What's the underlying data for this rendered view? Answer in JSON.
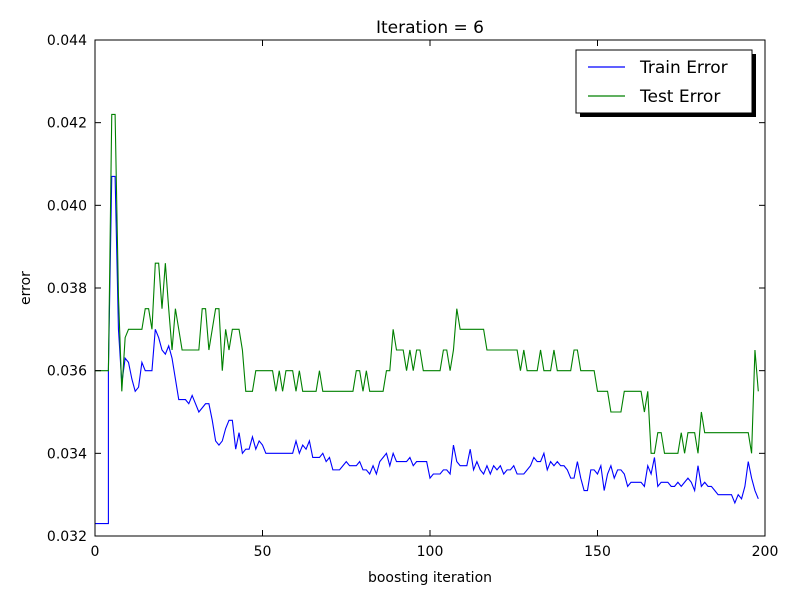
{
  "chart_data": {
    "type": "line",
    "title": "Iteration = 6",
    "xlabel": "boosting iteration",
    "ylabel": "error",
    "xlim": [
      0,
      200
    ],
    "ylim": [
      0.032,
      0.044
    ],
    "x_ticks": [
      "0",
      "50",
      "100",
      "150",
      "200"
    ],
    "y_ticks": [
      "0.032",
      "0.034",
      "0.036",
      "0.038",
      "0.040",
      "0.042",
      "0.044"
    ],
    "grid": false,
    "legend_position": "top-right",
    "series": [
      {
        "name": "Train Error",
        "color": "#0000ff",
        "points": [
          [
            0,
            0.0323
          ],
          [
            4,
            0.0323
          ],
          [
            4,
            0.036
          ],
          [
            5,
            0.0407
          ],
          [
            6,
            0.0407
          ],
          [
            7,
            0.037
          ],
          [
            8,
            0.0357
          ],
          [
            9,
            0.0363
          ],
          [
            10,
            0.0362
          ],
          [
            11,
            0.0358
          ],
          [
            12,
            0.0355
          ],
          [
            13,
            0.0356
          ],
          [
            14,
            0.0362
          ],
          [
            15,
            0.036
          ],
          [
            17,
            0.036
          ],
          [
            18,
            0.037
          ],
          [
            19,
            0.0368
          ],
          [
            20,
            0.0365
          ],
          [
            21,
            0.0364
          ],
          [
            22,
            0.0366
          ],
          [
            23,
            0.0363
          ],
          [
            24,
            0.0358
          ],
          [
            25,
            0.0353
          ],
          [
            27,
            0.0353
          ],
          [
            28,
            0.0352
          ],
          [
            29,
            0.0354
          ],
          [
            30,
            0.0352
          ],
          [
            31,
            0.035
          ],
          [
            32,
            0.0351
          ],
          [
            33,
            0.0352
          ],
          [
            34,
            0.0352
          ],
          [
            35,
            0.0348
          ],
          [
            36,
            0.0343
          ],
          [
            37,
            0.0342
          ],
          [
            38,
            0.0343
          ],
          [
            39,
            0.0346
          ],
          [
            40,
            0.0348
          ],
          [
            41,
            0.0348
          ],
          [
            42,
            0.0341
          ],
          [
            43,
            0.0345
          ],
          [
            44,
            0.034
          ],
          [
            45,
            0.0341
          ],
          [
            46,
            0.0341
          ],
          [
            47,
            0.0344
          ],
          [
            48,
            0.0341
          ],
          [
            49,
            0.0343
          ],
          [
            50,
            0.0342
          ],
          [
            51,
            0.034
          ],
          [
            59,
            0.034
          ],
          [
            60,
            0.0343
          ],
          [
            61,
            0.034
          ],
          [
            62,
            0.0342
          ],
          [
            63,
            0.0341
          ],
          [
            64,
            0.0343
          ],
          [
            65,
            0.0339
          ],
          [
            67,
            0.0339
          ],
          [
            68,
            0.034
          ],
          [
            69,
            0.0338
          ],
          [
            70,
            0.0339
          ],
          [
            71,
            0.0336
          ],
          [
            73,
            0.0336
          ],
          [
            74,
            0.0337
          ],
          [
            75,
            0.0338
          ],
          [
            76,
            0.0337
          ],
          [
            78,
            0.0337
          ],
          [
            79,
            0.0338
          ],
          [
            80,
            0.0336
          ],
          [
            81,
            0.0336
          ],
          [
            82,
            0.0335
          ],
          [
            83,
            0.0337
          ],
          [
            84,
            0.0335
          ],
          [
            85,
            0.0338
          ],
          [
            86,
            0.0339
          ],
          [
            87,
            0.034
          ],
          [
            88,
            0.0337
          ],
          [
            89,
            0.034
          ],
          [
            90,
            0.0338
          ],
          [
            93,
            0.0338
          ],
          [
            94,
            0.0339
          ],
          [
            95,
            0.0337
          ],
          [
            96,
            0.0338
          ],
          [
            97,
            0.0338
          ],
          [
            98,
            0.0338
          ],
          [
            99,
            0.0338
          ],
          [
            100,
            0.0334
          ],
          [
            101,
            0.0335
          ],
          [
            103,
            0.0335
          ],
          [
            104,
            0.0336
          ],
          [
            105,
            0.0336
          ],
          [
            106,
            0.0335
          ],
          [
            107,
            0.0342
          ],
          [
            108,
            0.0338
          ],
          [
            109,
            0.0337
          ],
          [
            111,
            0.0337
          ],
          [
            112,
            0.0341
          ],
          [
            113,
            0.0336
          ],
          [
            114,
            0.0338
          ],
          [
            115,
            0.0336
          ],
          [
            116,
            0.0335
          ],
          [
            117,
            0.0337
          ],
          [
            118,
            0.0335
          ],
          [
            119,
            0.0337
          ],
          [
            120,
            0.0336
          ],
          [
            121,
            0.0337
          ],
          [
            122,
            0.0335
          ],
          [
            123,
            0.0336
          ],
          [
            124,
            0.0336
          ],
          [
            125,
            0.0337
          ],
          [
            126,
            0.0335
          ],
          [
            128,
            0.0335
          ],
          [
            129,
            0.0336
          ],
          [
            130,
            0.0337
          ],
          [
            131,
            0.0339
          ],
          [
            132,
            0.0338
          ],
          [
            133,
            0.0338
          ],
          [
            134,
            0.034
          ],
          [
            135,
            0.0336
          ],
          [
            136,
            0.0338
          ],
          [
            137,
            0.0337
          ],
          [
            138,
            0.0338
          ],
          [
            139,
            0.0337
          ],
          [
            140,
            0.0337
          ],
          [
            141,
            0.0336
          ],
          [
            142,
            0.0334
          ],
          [
            143,
            0.0334
          ],
          [
            144,
            0.0338
          ],
          [
            145,
            0.0334
          ],
          [
            146,
            0.0331
          ],
          [
            147,
            0.0331
          ],
          [
            148,
            0.0336
          ],
          [
            149,
            0.0336
          ],
          [
            150,
            0.0335
          ],
          [
            151,
            0.0337
          ],
          [
            152,
            0.0331
          ],
          [
            153,
            0.0335
          ],
          [
            154,
            0.0337
          ],
          [
            155,
            0.0334
          ],
          [
            156,
            0.0336
          ],
          [
            157,
            0.0336
          ],
          [
            158,
            0.0335
          ],
          [
            159,
            0.0332
          ],
          [
            160,
            0.0333
          ],
          [
            161,
            0.0333
          ],
          [
            162,
            0.0333
          ],
          [
            163,
            0.0333
          ],
          [
            164,
            0.0332
          ],
          [
            165,
            0.0337
          ],
          [
            166,
            0.0335
          ],
          [
            167,
            0.0339
          ],
          [
            168,
            0.0332
          ],
          [
            169,
            0.0333
          ],
          [
            170,
            0.0333
          ],
          [
            171,
            0.0333
          ],
          [
            172,
            0.0332
          ],
          [
            173,
            0.0332
          ],
          [
            174,
            0.0333
          ],
          [
            175,
            0.0332
          ],
          [
            176,
            0.0333
          ],
          [
            177,
            0.0334
          ],
          [
            178,
            0.0333
          ],
          [
            179,
            0.0331
          ],
          [
            180,
            0.0337
          ],
          [
            181,
            0.0332
          ],
          [
            182,
            0.0333
          ],
          [
            183,
            0.0332
          ],
          [
            184,
            0.0332
          ],
          [
            185,
            0.0331
          ],
          [
            186,
            0.033
          ],
          [
            190,
            0.033
          ],
          [
            191,
            0.0328
          ],
          [
            192,
            0.033
          ],
          [
            193,
            0.0329
          ],
          [
            194,
            0.0332
          ],
          [
            195,
            0.0338
          ],
          [
            196,
            0.0334
          ],
          [
            197,
            0.0331
          ],
          [
            198,
            0.0329
          ]
        ]
      },
      {
        "name": "Test Error",
        "color": "#008000",
        "points": [
          [
            0,
            0.036
          ],
          [
            4,
            0.036
          ],
          [
            5,
            0.0422
          ],
          [
            6,
            0.0422
          ],
          [
            7,
            0.0378
          ],
          [
            8,
            0.0355
          ],
          [
            9,
            0.0368
          ],
          [
            10,
            0.037
          ],
          [
            14,
            0.037
          ],
          [
            15,
            0.0375
          ],
          [
            16,
            0.0375
          ],
          [
            17,
            0.037
          ],
          [
            18,
            0.0386
          ],
          [
            19,
            0.0386
          ],
          [
            20,
            0.0375
          ],
          [
            21,
            0.0386
          ],
          [
            22,
            0.0375
          ],
          [
            23,
            0.0365
          ],
          [
            24,
            0.0375
          ],
          [
            25,
            0.037
          ],
          [
            26,
            0.0365
          ],
          [
            31,
            0.0365
          ],
          [
            32,
            0.0375
          ],
          [
            33,
            0.0375
          ],
          [
            34,
            0.0365
          ],
          [
            35,
            0.037
          ],
          [
            36,
            0.0375
          ],
          [
            37,
            0.0375
          ],
          [
            38,
            0.036
          ],
          [
            39,
            0.037
          ],
          [
            40,
            0.0365
          ],
          [
            41,
            0.037
          ],
          [
            43,
            0.037
          ],
          [
            44,
            0.0365
          ],
          [
            45,
            0.0355
          ],
          [
            47,
            0.0355
          ],
          [
            48,
            0.036
          ],
          [
            53,
            0.036
          ],
          [
            54,
            0.0355
          ],
          [
            55,
            0.036
          ],
          [
            56,
            0.0355
          ],
          [
            57,
            0.036
          ],
          [
            59,
            0.036
          ],
          [
            60,
            0.0355
          ],
          [
            61,
            0.036
          ],
          [
            62,
            0.0355
          ],
          [
            66,
            0.0355
          ],
          [
            67,
            0.036
          ],
          [
            68,
            0.0355
          ],
          [
            77,
            0.0355
          ],
          [
            78,
            0.036
          ],
          [
            79,
            0.036
          ],
          [
            80,
            0.0355
          ],
          [
            81,
            0.036
          ],
          [
            82,
            0.0355
          ],
          [
            86,
            0.0355
          ],
          [
            87,
            0.036
          ],
          [
            88,
            0.036
          ],
          [
            89,
            0.037
          ],
          [
            90,
            0.0365
          ],
          [
            92,
            0.0365
          ],
          [
            93,
            0.036
          ],
          [
            94,
            0.0365
          ],
          [
            95,
            0.036
          ],
          [
            96,
            0.0365
          ],
          [
            97,
            0.0365
          ],
          [
            98,
            0.036
          ],
          [
            103,
            0.036
          ],
          [
            104,
            0.0365
          ],
          [
            105,
            0.0365
          ],
          [
            106,
            0.036
          ],
          [
            107,
            0.0365
          ],
          [
            108,
            0.0375
          ],
          [
            109,
            0.037
          ],
          [
            116,
            0.037
          ],
          [
            117,
            0.0365
          ],
          [
            126,
            0.0365
          ],
          [
            127,
            0.036
          ],
          [
            128,
            0.0365
          ],
          [
            129,
            0.036
          ],
          [
            132,
            0.036
          ],
          [
            133,
            0.0365
          ],
          [
            134,
            0.036
          ],
          [
            136,
            0.036
          ],
          [
            137,
            0.0365
          ],
          [
            138,
            0.036
          ],
          [
            142,
            0.036
          ],
          [
            143,
            0.0365
          ],
          [
            144,
            0.0365
          ],
          [
            145,
            0.036
          ],
          [
            149,
            0.036
          ],
          [
            150,
            0.0355
          ],
          [
            153,
            0.0355
          ],
          [
            154,
            0.035
          ],
          [
            157,
            0.035
          ],
          [
            158,
            0.0355
          ],
          [
            163,
            0.0355
          ],
          [
            164,
            0.035
          ],
          [
            165,
            0.0355
          ],
          [
            166,
            0.034
          ],
          [
            167,
            0.034
          ],
          [
            168,
            0.0345
          ],
          [
            169,
            0.0345
          ],
          [
            170,
            0.034
          ],
          [
            174,
            0.034
          ],
          [
            175,
            0.0345
          ],
          [
            176,
            0.034
          ],
          [
            177,
            0.0345
          ],
          [
            179,
            0.0345
          ],
          [
            180,
            0.034
          ],
          [
            181,
            0.035
          ],
          [
            182,
            0.0345
          ],
          [
            195,
            0.0345
          ],
          [
            196,
            0.034
          ],
          [
            197,
            0.0365
          ],
          [
            198,
            0.0355
          ]
        ]
      }
    ]
  }
}
